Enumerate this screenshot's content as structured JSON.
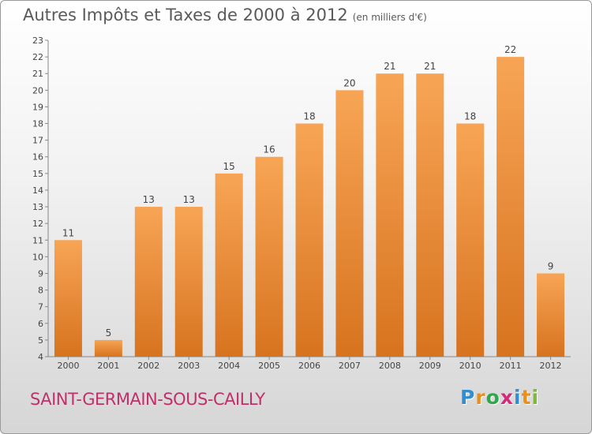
{
  "chart_data": {
    "type": "bar",
    "title": "Autres Impôts et Taxes de 2000 à 2012",
    "subtitle": "(en milliers d'€)",
    "categories": [
      "2000",
      "2001",
      "2002",
      "2003",
      "2004",
      "2005",
      "2006",
      "2007",
      "2008",
      "2009",
      "2010",
      "2011",
      "2012"
    ],
    "values": [
      11,
      5,
      13,
      13,
      15,
      16,
      18,
      20,
      21,
      21,
      18,
      22,
      9
    ],
    "ylim": [
      4,
      23
    ],
    "yticks": [
      4,
      5,
      6,
      7,
      8,
      9,
      10,
      11,
      12,
      13,
      14,
      15,
      16,
      17,
      18,
      19,
      20,
      21,
      22,
      23
    ],
    "grid": false,
    "bar_color": "#f0903a"
  },
  "footer": {
    "commune": "SAINT-GERMAIN-SOUS-CAILLY",
    "logo_letters": [
      "P",
      "r",
      "o",
      "x",
      "i",
      "t",
      "i"
    ],
    "logo_colors": [
      "#2f8fd0",
      "#e8901c",
      "#2fa84a",
      "#d42a7a",
      "#2f8fd0",
      "#e8901c",
      "#7cb83a"
    ]
  }
}
